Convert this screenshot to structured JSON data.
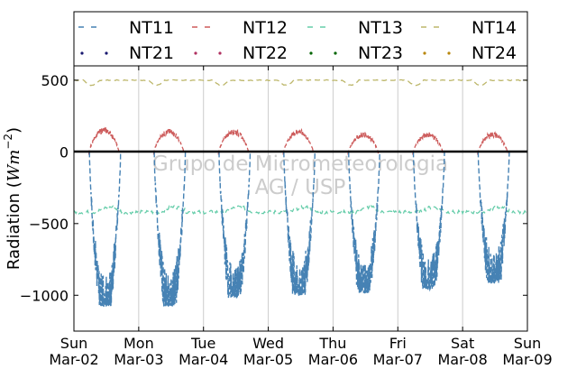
{
  "chart_data": {
    "type": "line",
    "title": "",
    "xlabel": "",
    "ylabel": "Radiation ($Wm^{-2}$)",
    "ylabel_text": "Radiation (",
    "ylabel_unit": "Wm",
    "ylabel_exp": "−2",
    "ylabel_close": ")",
    "ylim": [
      -1250,
      600
    ],
    "xlim": [
      "2014-03-02",
      "2014-03-09"
    ],
    "y_ticks": [
      500,
      0,
      -500,
      -1000
    ],
    "y_tick_labels": [
      "500",
      "0",
      "−500",
      "−1000"
    ],
    "x_tick_labels": [
      [
        "Sun",
        "Mar-02"
      ],
      [
        "Mon",
        "Mar-03"
      ],
      [
        "Tue",
        "Mar-04"
      ],
      [
        "Wed",
        "Mar-05"
      ],
      [
        "Thu",
        "Mar-06"
      ],
      [
        "Fri",
        "Mar-07"
      ],
      [
        "Sat",
        "Mar-08"
      ],
      [
        "Sun",
        "Mar-09"
      ]
    ],
    "grid": "vertical",
    "legend_position": "top",
    "watermark": [
      "Grupo de Micrometeorologia",
      "AG / USP"
    ],
    "series": [
      {
        "name": "NT11",
        "color": "#4682b4",
        "style": "dashed",
        "daily_min": [
          -1080,
          -1080,
          -1020,
          -1000,
          -990,
          -960,
          -920
        ]
      },
      {
        "name": "NT12",
        "color": "#cd5c5c",
        "style": "dashed",
        "daily_max": [
          150,
          140,
          140,
          140,
          120,
          120,
          120
        ]
      },
      {
        "name": "NT13",
        "color": "#66cdaa",
        "style": "dashed",
        "mean": -410
      },
      {
        "name": "NT14",
        "color": "#bdb76b",
        "style": "dashed",
        "mean": 475
      },
      {
        "name": "NT21",
        "color": "#191970",
        "style": "dotted"
      },
      {
        "name": "NT22",
        "color": "#b03060",
        "style": "dotted"
      },
      {
        "name": "NT23",
        "color": "#006400",
        "style": "dotted"
      },
      {
        "name": "NT24",
        "color": "#b8860b",
        "style": "dotted"
      }
    ]
  }
}
